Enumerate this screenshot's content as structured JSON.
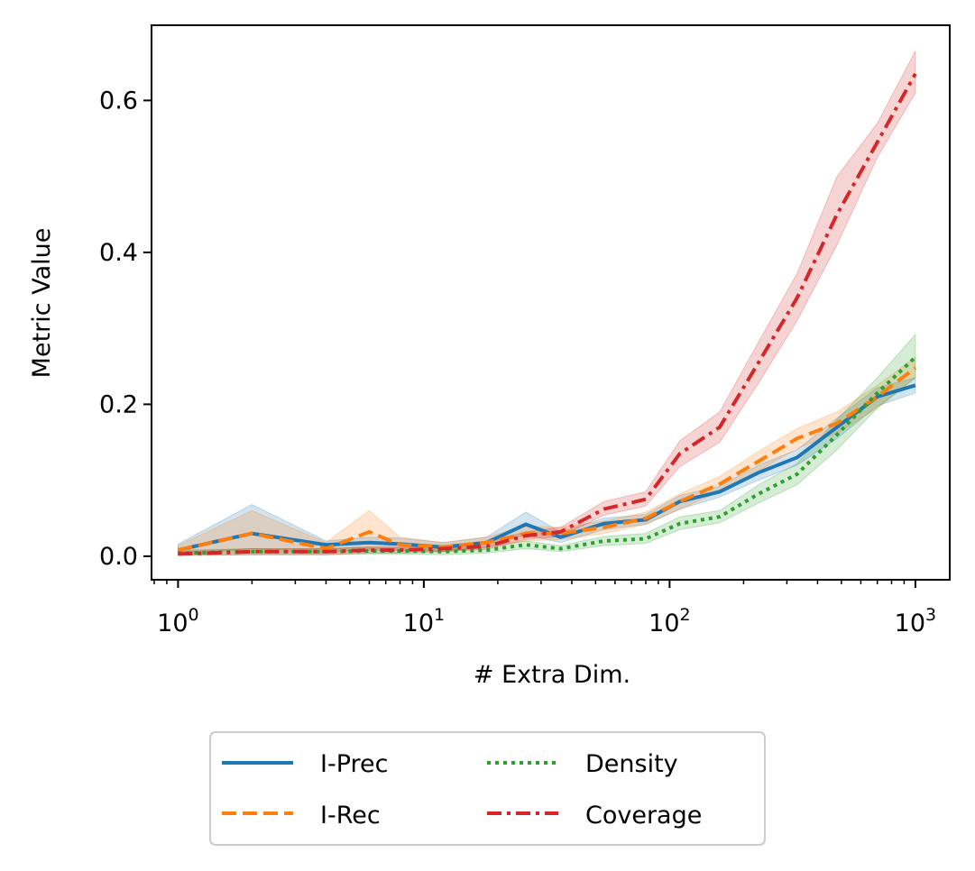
{
  "chart_data": {
    "type": "line",
    "title": "",
    "xlabel": "# Extra Dim.",
    "ylabel": "Metric Value",
    "xscale": "log",
    "xlim": [
      0.78,
      1380
    ],
    "ylim": [
      -0.031,
      0.699
    ],
    "x": [
      1,
      2,
      4,
      6,
      8,
      12,
      18,
      26,
      36,
      54,
      80,
      110,
      160,
      230,
      330,
      480,
      700,
      1000
    ],
    "yticks": [
      0.0,
      0.2,
      0.4,
      0.6
    ],
    "ytick_labels": [
      "0.0",
      "0.2",
      "0.4",
      "0.6"
    ],
    "xticks": [
      1,
      10,
      100,
      1000
    ],
    "xtick_labels": [
      {
        "base": "10",
        "exp": "0"
      },
      {
        "base": "10",
        "exp": "1"
      },
      {
        "base": "10",
        "exp": "2"
      },
      {
        "base": "10",
        "exp": "3"
      }
    ],
    "legend_position": "below",
    "series": [
      {
        "name": "I-Prec",
        "color": "#1f77b4",
        "dash": "solid",
        "values": [
          0.008,
          0.03,
          0.015,
          0.018,
          0.016,
          0.012,
          0.018,
          0.042,
          0.025,
          0.043,
          0.048,
          0.072,
          0.085,
          0.11,
          0.13,
          0.17,
          0.21,
          0.225
        ],
        "lower": [
          0.002,
          0.01,
          0.005,
          0.008,
          0.008,
          0.006,
          0.012,
          0.028,
          0.018,
          0.035,
          0.042,
          0.062,
          0.078,
          0.1,
          0.12,
          0.155,
          0.198,
          0.215
        ],
        "upper": [
          0.016,
          0.068,
          0.02,
          0.025,
          0.024,
          0.018,
          0.025,
          0.058,
          0.032,
          0.05,
          0.055,
          0.08,
          0.092,
          0.12,
          0.14,
          0.182,
          0.222,
          0.235
        ]
      },
      {
        "name": "I-Rec",
        "color": "#ff7f0e",
        "dash": "dashed",
        "values": [
          0.008,
          0.03,
          0.01,
          0.032,
          0.015,
          0.012,
          0.018,
          0.03,
          0.03,
          0.038,
          0.05,
          0.072,
          0.095,
          0.125,
          0.155,
          0.175,
          0.21,
          0.248
        ],
        "lower": [
          0.002,
          0.005,
          0.004,
          0.01,
          0.008,
          0.006,
          0.012,
          0.02,
          0.022,
          0.03,
          0.042,
          0.062,
          0.085,
          0.112,
          0.142,
          0.162,
          0.195,
          0.235
        ],
        "upper": [
          0.014,
          0.06,
          0.018,
          0.06,
          0.025,
          0.018,
          0.025,
          0.04,
          0.038,
          0.046,
          0.058,
          0.082,
          0.105,
          0.138,
          0.168,
          0.19,
          0.225,
          0.262
        ]
      },
      {
        "name": "Density",
        "color": "#2ca02c",
        "dash": "dotted",
        "values": [
          0.004,
          0.006,
          0.006,
          0.007,
          0.007,
          0.006,
          0.008,
          0.015,
          0.01,
          0.02,
          0.023,
          0.043,
          0.052,
          0.082,
          0.108,
          0.16,
          0.215,
          0.262
        ],
        "lower": [
          0.001,
          0.002,
          0.002,
          0.003,
          0.003,
          0.002,
          0.004,
          0.01,
          0.006,
          0.014,
          0.017,
          0.035,
          0.044,
          0.07,
          0.094,
          0.14,
          0.195,
          0.235
        ],
        "upper": [
          0.008,
          0.01,
          0.01,
          0.012,
          0.011,
          0.01,
          0.012,
          0.02,
          0.014,
          0.026,
          0.03,
          0.052,
          0.06,
          0.094,
          0.122,
          0.18,
          0.235,
          0.292
        ]
      },
      {
        "name": "Coverage",
        "color": "#d62728",
        "dash": "dashdot",
        "values": [
          0.003,
          0.006,
          0.006,
          0.008,
          0.008,
          0.01,
          0.013,
          0.027,
          0.032,
          0.062,
          0.075,
          0.135,
          0.17,
          0.255,
          0.34,
          0.45,
          0.545,
          0.635
        ],
        "lower": [
          0.001,
          0.002,
          0.002,
          0.004,
          0.004,
          0.006,
          0.009,
          0.022,
          0.026,
          0.054,
          0.066,
          0.118,
          0.15,
          0.228,
          0.31,
          0.41,
          0.525,
          0.61
        ],
        "upper": [
          0.006,
          0.01,
          0.01,
          0.012,
          0.012,
          0.014,
          0.018,
          0.032,
          0.038,
          0.072,
          0.085,
          0.152,
          0.19,
          0.282,
          0.372,
          0.5,
          0.57,
          0.665
        ]
      }
    ]
  }
}
